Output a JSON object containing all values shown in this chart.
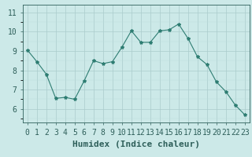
{
  "x": [
    0,
    1,
    2,
    3,
    4,
    5,
    6,
    7,
    8,
    9,
    10,
    11,
    12,
    13,
    14,
    15,
    16,
    17,
    18,
    19,
    20,
    21,
    22,
    23
  ],
  "y": [
    9.05,
    8.45,
    7.8,
    6.55,
    6.6,
    6.5,
    7.45,
    8.5,
    8.35,
    8.45,
    9.2,
    10.05,
    9.45,
    9.45,
    10.05,
    10.1,
    10.4,
    9.65,
    8.7,
    8.3,
    7.4,
    6.9,
    6.2,
    5.7
  ],
  "line_color": "#2e7d72",
  "marker": "*",
  "marker_size": 3,
  "bg_color": "#cce9e8",
  "grid_color_major": "#aacccc",
  "grid_color_minor": "#bbdddd",
  "xlabel": "Humidex (Indice chaleur)",
  "ylabel_ticks": [
    6,
    7,
    8,
    9,
    10,
    11
  ],
  "ylim": [
    5.3,
    11.4
  ],
  "xlim": [
    -0.5,
    23.5
  ],
  "xlabel_fontsize": 8,
  "tick_fontsize": 7
}
